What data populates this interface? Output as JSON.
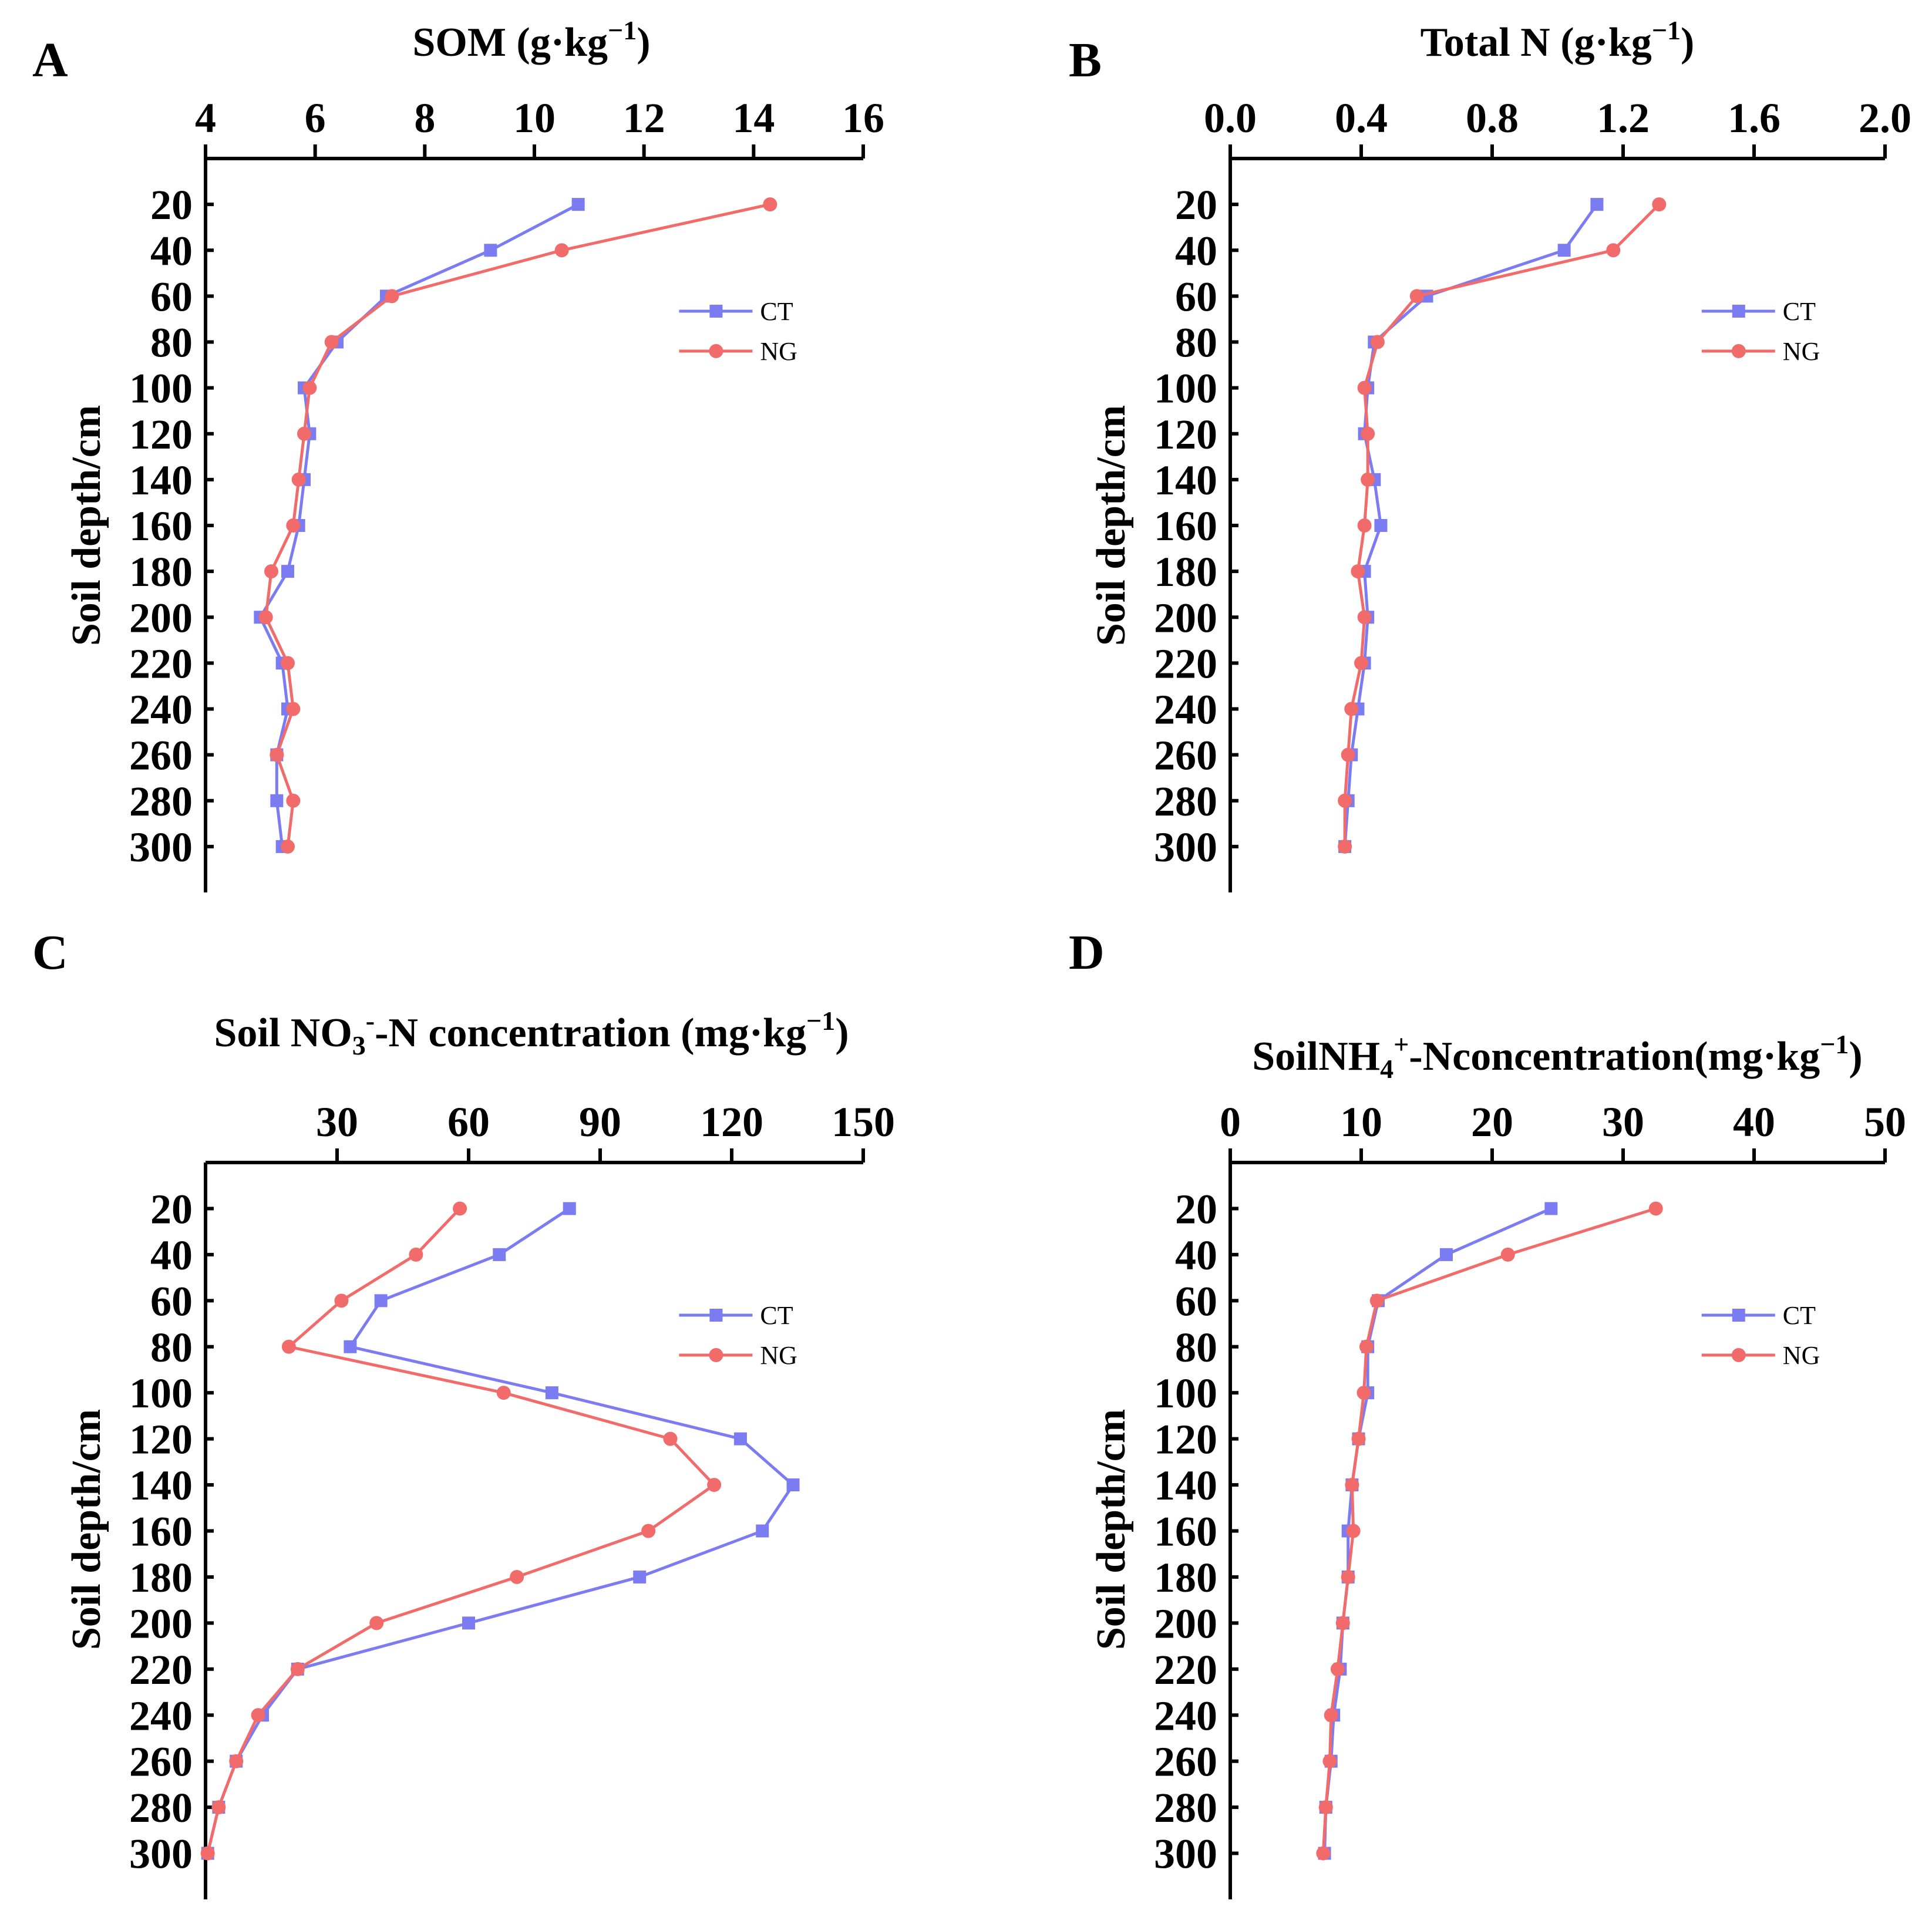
{
  "figure": {
    "ylabel": "Soil depth/cm",
    "legend": {
      "position": "top-right",
      "entries": [
        {
          "name": "CT",
          "color": "#7b7bf2",
          "marker": "square"
        },
        {
          "name": "NG",
          "color": "#f26b6b",
          "marker": "circle"
        }
      ]
    }
  },
  "chart_data": [
    {
      "panel": "A",
      "type": "line",
      "title_parts": {
        "main": "SOM (g·kg",
        "sup": "−1",
        "tail": ")"
      },
      "xlabel": "SOM (g·kg−1)",
      "ylabel": "Soil depth/cm",
      "xlim": [
        4,
        16
      ],
      "xticks": [
        4,
        6,
        8,
        10,
        12,
        14,
        16
      ],
      "ylim": [
        0,
        320
      ],
      "yticks": [
        20,
        40,
        60,
        80,
        100,
        120,
        140,
        160,
        180,
        200,
        220,
        240,
        260,
        280,
        300
      ],
      "depth": [
        20,
        40,
        60,
        80,
        100,
        120,
        140,
        160,
        180,
        200,
        220,
        240,
        260,
        280,
        300
      ],
      "series": [
        {
          "name": "CT",
          "values": [
            10.8,
            9.2,
            7.3,
            6.4,
            5.8,
            5.9,
            5.8,
            5.7,
            5.5,
            5.0,
            5.4,
            5.5,
            5.3,
            5.3,
            5.4
          ]
        },
        {
          "name": "NG",
          "values": [
            14.3,
            10.5,
            7.4,
            6.3,
            5.9,
            5.8,
            5.7,
            5.6,
            5.2,
            5.1,
            5.5,
            5.6,
            5.3,
            5.6,
            5.5
          ]
        }
      ]
    },
    {
      "panel": "B",
      "type": "line",
      "title_parts": {
        "main": "Total N (g·kg",
        "sup": "−1",
        "tail": ")"
      },
      "xlabel": "Total N (g·kg−1)",
      "ylabel": "Soil depth/cm",
      "xlim": [
        0.0,
        2.0
      ],
      "xticks": [
        "0.0",
        "0.4",
        "0.8",
        "1.2",
        "1.6",
        "2.0"
      ],
      "ylim": [
        0,
        320
      ],
      "yticks": [
        20,
        40,
        60,
        80,
        100,
        120,
        140,
        160,
        180,
        200,
        220,
        240,
        260,
        280,
        300
      ],
      "depth": [
        20,
        40,
        60,
        80,
        100,
        120,
        140,
        160,
        180,
        200,
        220,
        240,
        260,
        280,
        300
      ],
      "series": [
        {
          "name": "CT",
          "values": [
            1.12,
            1.02,
            0.6,
            0.44,
            0.42,
            0.41,
            0.44,
            0.46,
            0.41,
            0.42,
            0.41,
            0.39,
            0.37,
            0.36,
            0.35
          ]
        },
        {
          "name": "NG",
          "values": [
            1.31,
            1.17,
            0.57,
            0.45,
            0.41,
            0.42,
            0.42,
            0.41,
            0.39,
            0.41,
            0.4,
            0.37,
            0.36,
            0.35,
            0.35
          ]
        }
      ]
    },
    {
      "panel": "C",
      "type": "line",
      "title_parts": {
        "pre": "Soil NO",
        "sub": "3",
        "sup": "-",
        "post": "-N  concentration (mg·kg",
        "sup2": "−1",
        "tail": ")"
      },
      "xlabel": "Soil NO3−-N concentration (mg·kg−1)",
      "ylabel": "Soil depth/cm",
      "xlim": [
        0,
        150
      ],
      "xticks": [
        30,
        60,
        90,
        120,
        150
      ],
      "ylim": [
        0,
        320
      ],
      "yticks": [
        20,
        40,
        60,
        80,
        100,
        120,
        140,
        160,
        180,
        200,
        220,
        240,
        260,
        280,
        300
      ],
      "depth": [
        20,
        40,
        60,
        80,
        100,
        120,
        140,
        160,
        180,
        200,
        220,
        240,
        260,
        280,
        300
      ],
      "series": [
        {
          "name": "CT",
          "values": [
            83,
            67,
            40,
            33,
            79,
            122,
            134,
            127,
            99,
            60,
            21,
            13,
            7,
            3,
            0.5
          ]
        },
        {
          "name": "NG",
          "values": [
            58,
            48,
            31,
            19,
            68,
            106,
            116,
            101,
            71,
            39,
            21,
            12,
            7,
            3,
            0.5
          ]
        }
      ]
    },
    {
      "panel": "D",
      "type": "line",
      "title_parts": {
        "pre": "SoilNH",
        "sub": "4",
        "sup": "+",
        "post": "-Nconcentration(mg·kg",
        "sup2": "−1",
        "tail": ")"
      },
      "xlabel": "SoilNH4+-Nconcentration(mg·kg−1)",
      "ylabel": "Soil depth/cm",
      "xlim": [
        0,
        50
      ],
      "xticks": [
        0,
        10,
        20,
        30,
        40,
        50
      ],
      "ylim": [
        0,
        320
      ],
      "yticks": [
        20,
        40,
        60,
        80,
        100,
        120,
        140,
        160,
        180,
        200,
        220,
        240,
        260,
        280,
        300
      ],
      "depth": [
        20,
        40,
        60,
        80,
        100,
        120,
        140,
        160,
        180,
        200,
        220,
        240,
        260,
        280,
        300
      ],
      "series": [
        {
          "name": "CT",
          "values": [
            24.5,
            16.5,
            11.3,
            10.5,
            10.5,
            9.8,
            9.3,
            9.0,
            9.0,
            8.6,
            8.4,
            7.9,
            7.7,
            7.3,
            7.2
          ]
        },
        {
          "name": "NG",
          "values": [
            32.5,
            21.2,
            11.2,
            10.4,
            10.2,
            9.8,
            9.3,
            9.4,
            9.0,
            8.6,
            8.2,
            7.7,
            7.6,
            7.3,
            7.1
          ]
        }
      ]
    }
  ]
}
